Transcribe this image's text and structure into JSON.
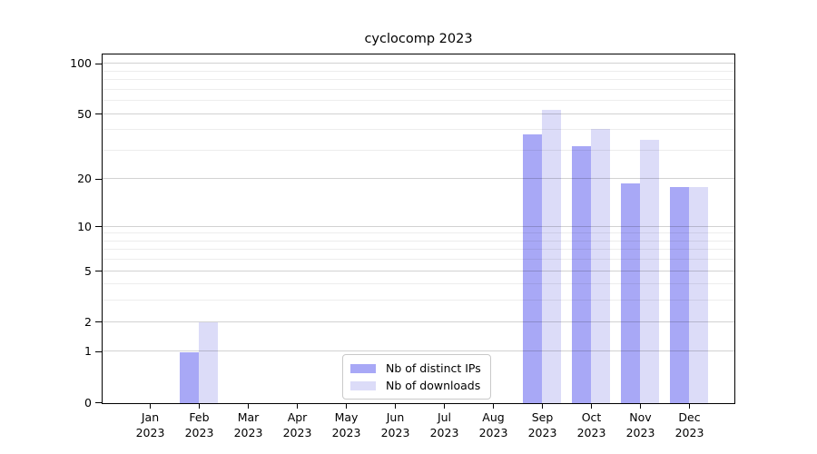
{
  "chart_data": {
    "type": "bar",
    "title": "cyclocomp 2023",
    "categories": [
      "Jan 2023",
      "Feb 2023",
      "Mar 2023",
      "Apr 2023",
      "May 2023",
      "Jun 2023",
      "Jul 2023",
      "Aug 2023",
      "Sep 2023",
      "Oct 2023",
      "Nov 2023",
      "Dec 2023"
    ],
    "series": [
      {
        "name": "Nb of distinct IPs",
        "color": "#a8a8f6",
        "values": [
          0,
          1,
          0,
          0,
          0,
          0,
          0,
          0,
          38,
          32,
          19,
          18
        ]
      },
      {
        "name": "Nb of downloads",
        "color": "#dcdcf8",
        "values": [
          0,
          2,
          0,
          0,
          0,
          0,
          0,
          0,
          53,
          41,
          35,
          18
        ]
      }
    ],
    "xlabel": "",
    "ylabel": "",
    "yscale": "log1p",
    "ylim": [
      0,
      113
    ],
    "yticks": [
      0,
      1,
      2,
      5,
      10,
      20,
      50,
      100
    ],
    "minor_gridlines": [
      3,
      4,
      6,
      7,
      8,
      9,
      30,
      40,
      60,
      70,
      80,
      90
    ],
    "grid": "horizontal",
    "legend_position": "lower center"
  },
  "colors": {
    "axis": "#000000",
    "major_grid": "#d2d2d2",
    "minor_grid": "#ededed",
    "background": "#ffffff"
  }
}
